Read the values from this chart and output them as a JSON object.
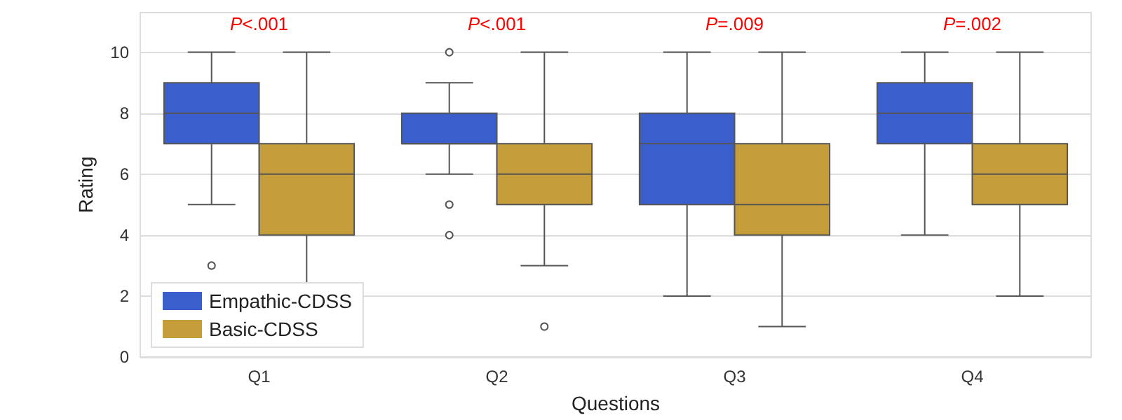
{
  "chart_data": {
    "type": "box",
    "xlabel": "Questions",
    "ylabel": "Rating",
    "categories": [
      "Q1",
      "Q2",
      "Q3",
      "Q4"
    ],
    "ylim": [
      0,
      11.3
    ],
    "yticks": [
      0,
      2,
      4,
      6,
      8,
      10
    ],
    "grid": "y",
    "legend": "bottom left",
    "series": [
      {
        "name": "Empathic-CDSS",
        "color": "#3a5fcd",
        "boxes": [
          {
            "low": 5,
            "q1": 7,
            "median": 8,
            "q3": 9,
            "high": 10,
            "outliers": [
              3
            ]
          },
          {
            "low": 6,
            "q1": 7,
            "median": 7,
            "q3": 8,
            "high": 9,
            "outliers": [
              10,
              5,
              4
            ]
          },
          {
            "low": 2,
            "q1": 5,
            "median": 7,
            "q3": 8,
            "high": 10
          },
          {
            "low": 4,
            "q1": 7,
            "median": 8,
            "q3": 9,
            "high": 10
          }
        ]
      },
      {
        "name": "Basic-CDSS",
        "color": "#c59d3a",
        "boxes": [
          {
            "low": 1,
            "q1": 4,
            "median": 6,
            "q3": 7,
            "high": 10
          },
          {
            "low": 3,
            "q1": 5,
            "median": 6,
            "q3": 7,
            "high": 10,
            "outliers": [
              1
            ]
          },
          {
            "low": 1,
            "q1": 4,
            "median": 5,
            "q3": 7,
            "high": 10
          },
          {
            "low": 2,
            "q1": 5,
            "median": 6,
            "q3": 7,
            "high": 10
          }
        ]
      }
    ],
    "annotations": [
      "P<.001",
      "P<.001",
      "P=.009",
      "P=.002"
    ]
  }
}
